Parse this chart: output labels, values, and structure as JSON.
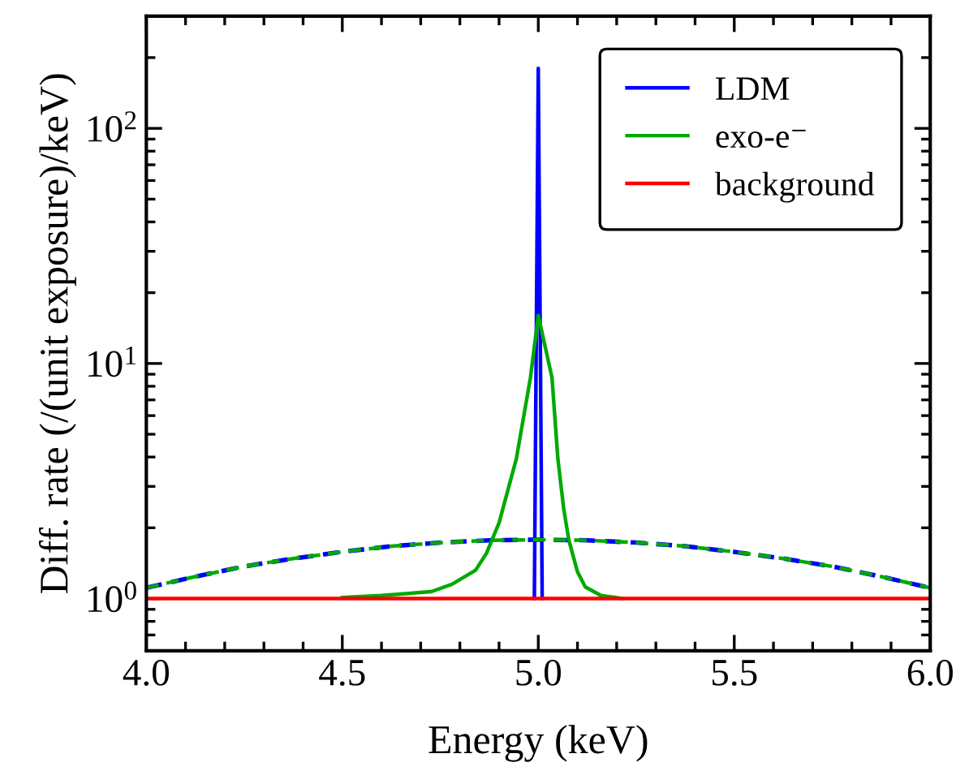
{
  "chart_data": {
    "type": "line",
    "xlabel": "Energy (keV)",
    "ylabel": "Diff. rate (/(unit exposure)/keV)",
    "log": "y",
    "xlim": [
      4.0,
      6.0
    ],
    "xticks": [
      {
        "value": 4.0,
        "label": "4.0"
      },
      {
        "value": 4.5,
        "label": "4.5"
      },
      {
        "value": 5.0,
        "label": "5.0"
      },
      {
        "value": 5.5,
        "label": "5.5"
      },
      {
        "value": 6.0,
        "label": "6.0"
      }
    ],
    "ylim": [
      0.6,
      300
    ],
    "yticks": [
      {
        "value": 1,
        "label": "10$^{0}$"
      },
      {
        "value": 10,
        "label": "10$^{1}$"
      },
      {
        "value": 100,
        "label": "10$^{2}$"
      }
    ],
    "grid": false,
    "legend": "top right",
    "marker": "none",
    "series": [
      {
        "name": "LDM",
        "color": "#0000ff",
        "line_style": "solid",
        "x": [
          4.99,
          5.0,
          5.01
        ],
        "values": [
          1.0,
          180,
          1.0
        ]
      },
      {
        "color": "#0000ff",
        "line_style": "dashed",
        "x": [
          4.0,
          4.125,
          4.25,
          4.375,
          4.5,
          4.625,
          4.75,
          4.875,
          5.0,
          5.125,
          5.25,
          5.375,
          5.5,
          5.625,
          5.75,
          5.875,
          6.0
        ],
        "values": [
          1.11,
          1.24,
          1.37,
          1.48,
          1.58,
          1.67,
          1.73,
          1.77,
          1.78,
          1.77,
          1.73,
          1.67,
          1.58,
          1.48,
          1.37,
          1.24,
          1.11
        ]
      },
      {
        "name": "exo-e⁻",
        "color": "#00aa00",
        "line_style": "solid",
        "x": [
          4.5,
          4.6,
          4.727,
          4.78,
          4.84,
          4.868,
          4.9,
          4.944,
          4.98,
          5.0,
          5.035,
          5.05,
          5.065,
          5.078,
          5.1,
          5.12,
          5.16,
          5.216
        ],
        "values": [
          1.01,
          1.03,
          1.07,
          1.15,
          1.32,
          1.56,
          2.1,
          3.93,
          8.7,
          16,
          8.7,
          3.93,
          2.4,
          1.77,
          1.3,
          1.12,
          1.03,
          1.0
        ]
      },
      {
        "color": "#00aa00",
        "line_style": "dashed",
        "x": [
          4.0,
          4.125,
          4.25,
          4.375,
          4.5,
          4.625,
          4.75,
          4.875,
          5.0,
          5.125,
          5.25,
          5.375,
          5.5,
          5.625,
          5.75,
          5.875,
          6.0
        ],
        "values": [
          1.11,
          1.24,
          1.37,
          1.48,
          1.58,
          1.67,
          1.73,
          1.77,
          1.78,
          1.77,
          1.73,
          1.67,
          1.58,
          1.48,
          1.37,
          1.24,
          1.11
        ]
      },
      {
        "name": "background",
        "color": "#ff0000",
        "line_style": "solid",
        "x": [
          4.0,
          6.0
        ],
        "values": [
          1.0,
          1.0
        ]
      }
    ]
  }
}
